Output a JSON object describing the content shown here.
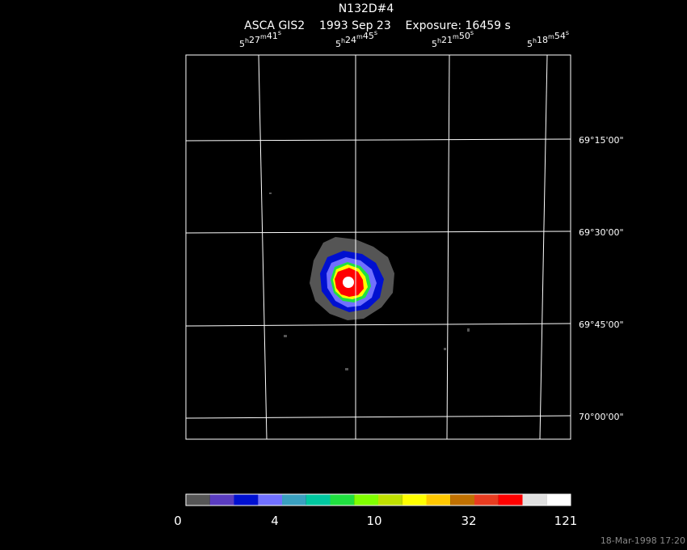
{
  "title": "N132D#4",
  "subtitle": "ASCA GIS2    1993 Sep 23    Exposure: 16459 s",
  "ra_labels": [
    {
      "h": "5",
      "m": "27",
      "s": "41"
    },
    {
      "h": "5",
      "m": "24",
      "s": "45"
    },
    {
      "h": "5",
      "m": "21",
      "s": "50"
    },
    {
      "h": "5",
      "m": "18",
      "s": "54"
    }
  ],
  "dec_labels": [
    "69°15'00\"",
    "69°30'00\"",
    "69°45'00\"",
    "70°00'00\""
  ],
  "colorbar": {
    "colors": [
      "#555555",
      "#5a3cc0",
      "#0010d0",
      "#7070ff",
      "#3aa0c0",
      "#00c8a0",
      "#20e040",
      "#80ff00",
      "#c0e000",
      "#ffff00",
      "#ffc800",
      "#c07000",
      "#e83c20",
      "#ff0000",
      "#e0e0e0",
      "#ffffff"
    ],
    "ticks": [
      "0",
      "4",
      "10",
      "32",
      "121"
    ]
  },
  "timestamp": "18-Mar-1998 17:20"
}
